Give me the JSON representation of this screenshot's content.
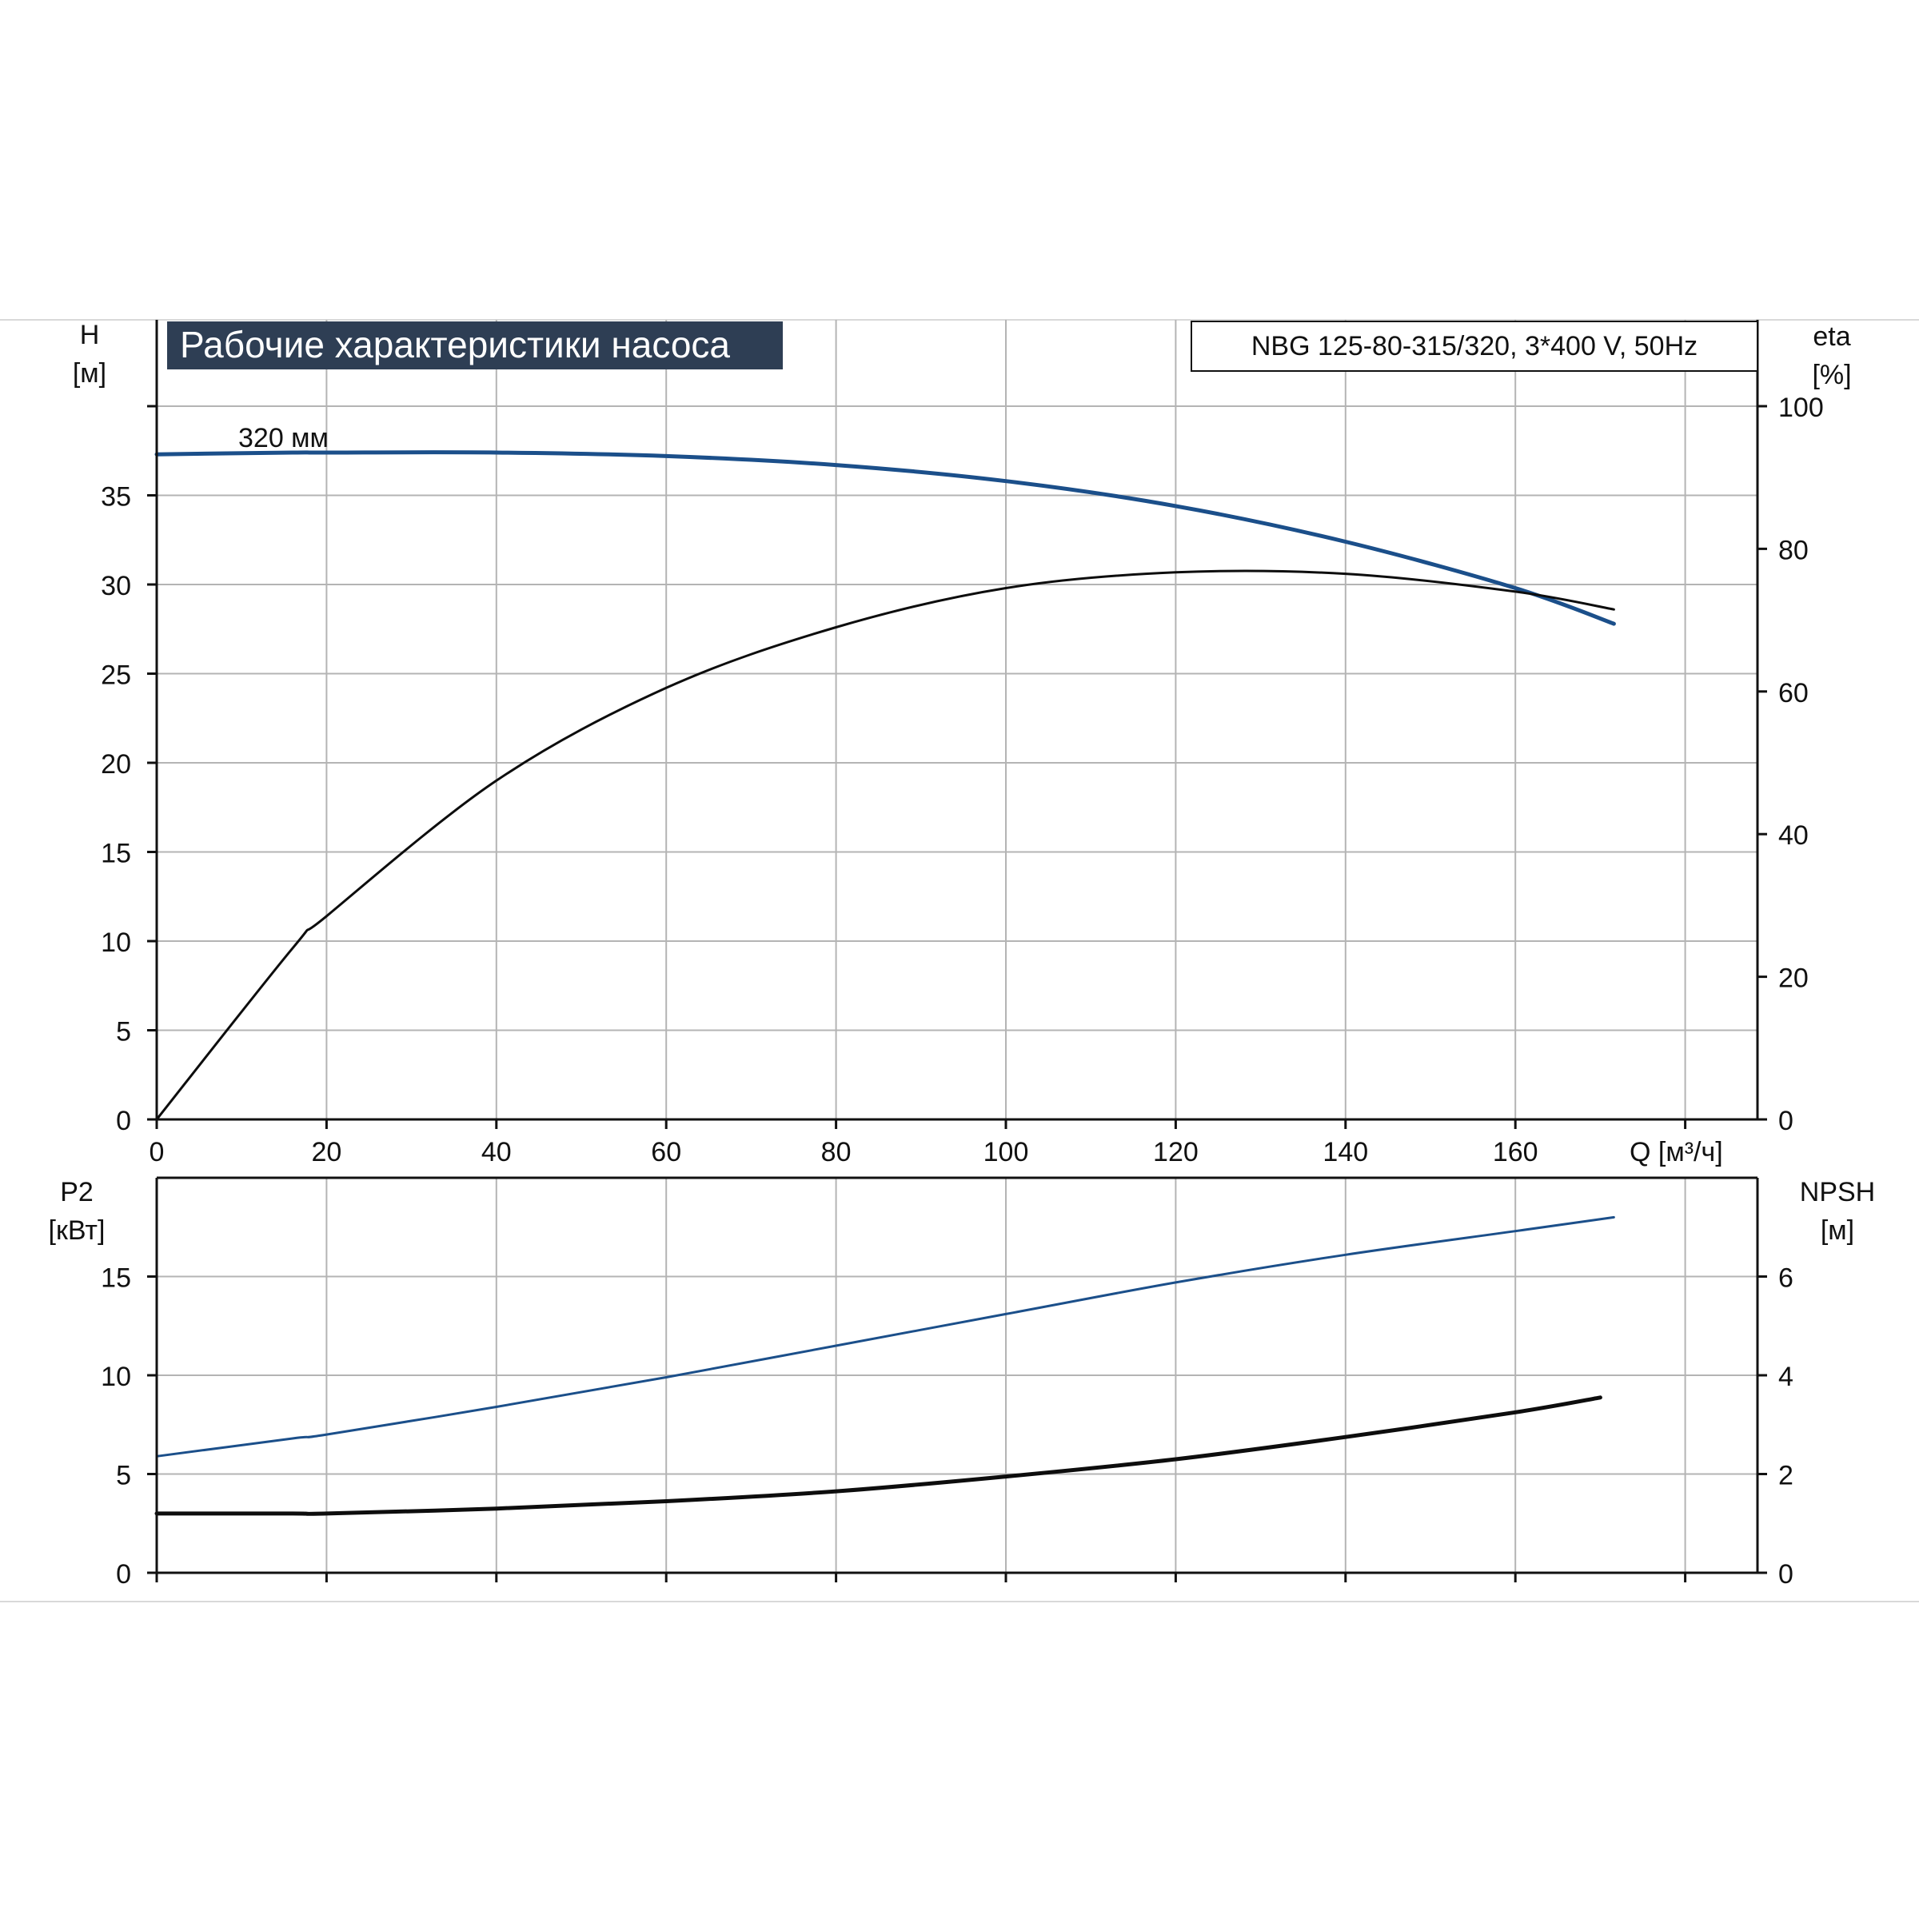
{
  "title": "Рабочие характеристики насоса",
  "model": "NBG 125-80-315/320, 3*400 V, 50Hz",
  "colors": {
    "blue": "#1b4f8a",
    "black": "#0d0d0d",
    "title_bg": "#2e3e54",
    "title_fg": "#ffffff"
  },
  "chart_data": [
    {
      "type": "line",
      "x_label": "Q [м³/ч]",
      "y_left_label": [
        "H",
        "[м]"
      ],
      "y_right_label": [
        "eta",
        "[%]"
      ],
      "xlim": [
        0,
        188
      ],
      "x_ticks": [
        0,
        20,
        40,
        60,
        80,
        100,
        120,
        140,
        160
      ],
      "ylim_left": [
        0,
        40
      ],
      "y_ticks_left": [
        0,
        5,
        10,
        15,
        20,
        25,
        30,
        35
      ],
      "ylim_right": [
        0,
        100
      ],
      "y_ticks_right": [
        0,
        20,
        40,
        60,
        80,
        100
      ],
      "annotation": "320 мм",
      "series": [
        {
          "axis": "left",
          "color": "blue",
          "x": [
            0,
            16,
            20,
            40,
            60,
            80,
            100,
            120,
            140,
            160,
            171.6
          ],
          "y": [
            37.3,
            37.4,
            37.4,
            37.4,
            37.2,
            36.7,
            35.8,
            34.4,
            32.4,
            29.8,
            27.8
          ]
        },
        {
          "axis": "right",
          "color": "black",
          "x": [
            0,
            16,
            20,
            40,
            60,
            80,
            100,
            120,
            140,
            160,
            171.6
          ],
          "y": [
            0,
            24,
            28.5,
            47.5,
            60.5,
            69,
            74.5,
            76.7,
            76.5,
            74,
            71.5
          ]
        }
      ]
    },
    {
      "type": "line",
      "y_left_label": [
        "P2",
        "[кВт]"
      ],
      "y_right_label": [
        "NPSH",
        "[м]"
      ],
      "xlim": [
        0,
        188
      ],
      "x_ticks": [
        0,
        20,
        40,
        60,
        80,
        100,
        120,
        140,
        160
      ],
      "ylim_left": [
        0,
        20
      ],
      "y_ticks_left": [
        0,
        5,
        10,
        15
      ],
      "ylim_right": [
        0,
        8
      ],
      "y_ticks_right": [
        0,
        2,
        4,
        6
      ],
      "series": [
        {
          "axis": "left",
          "color": "blue",
          "x": [
            0,
            16,
            20,
            40,
            60,
            80,
            100,
            120,
            140,
            160,
            171.6
          ],
          "y": [
            5.9,
            6.8,
            7.0,
            8.4,
            9.9,
            11.5,
            13.1,
            14.7,
            16.1,
            17.3,
            18.0
          ]
        },
        {
          "axis": "right",
          "color": "black",
          "x": [
            0,
            16,
            20,
            40,
            60,
            80,
            100,
            120,
            140,
            160,
            170
          ],
          "y": [
            1.2,
            1.2,
            1.2,
            1.3,
            1.45,
            1.65,
            1.95,
            2.3,
            2.75,
            3.25,
            3.55
          ]
        }
      ]
    }
  ]
}
